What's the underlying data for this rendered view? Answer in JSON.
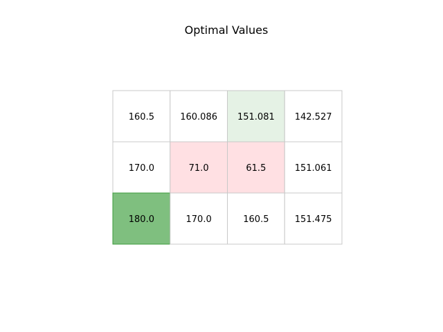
{
  "chart_data": {
    "type": "heatmap",
    "title": "Optimal Values",
    "rows": 3,
    "cols": 4,
    "cells": [
      [
        {
          "label": "160.5",
          "value": 160.5,
          "kind": "normal"
        },
        {
          "label": "160.086",
          "value": 160.086,
          "kind": "normal"
        },
        {
          "label": "151.081",
          "value": 151.081,
          "kind": "start"
        },
        {
          "label": "142.527",
          "value": 142.527,
          "kind": "normal"
        }
      ],
      [
        {
          "label": "170.0",
          "value": 170.0,
          "kind": "normal"
        },
        {
          "label": "71.0",
          "value": 71.0,
          "kind": "hazard"
        },
        {
          "label": "61.5",
          "value": 61.5,
          "kind": "hazard"
        },
        {
          "label": "151.061",
          "value": 151.061,
          "kind": "normal"
        }
      ],
      [
        {
          "label": "180.0",
          "value": 180.0,
          "kind": "goal"
        },
        {
          "label": "170.0",
          "value": 170.0,
          "kind": "normal"
        },
        {
          "label": "160.5",
          "value": 160.5,
          "kind": "normal"
        },
        {
          "label": "151.475",
          "value": 151.475,
          "kind": "normal"
        }
      ]
    ],
    "colors": {
      "normal": "#ffffff",
      "start": "#e5f2e5",
      "hazard": "#ffe0e3",
      "goal": "#7fbf7f",
      "grid": "#c8c8c8",
      "goal_border": "#3d9b3d"
    }
  }
}
